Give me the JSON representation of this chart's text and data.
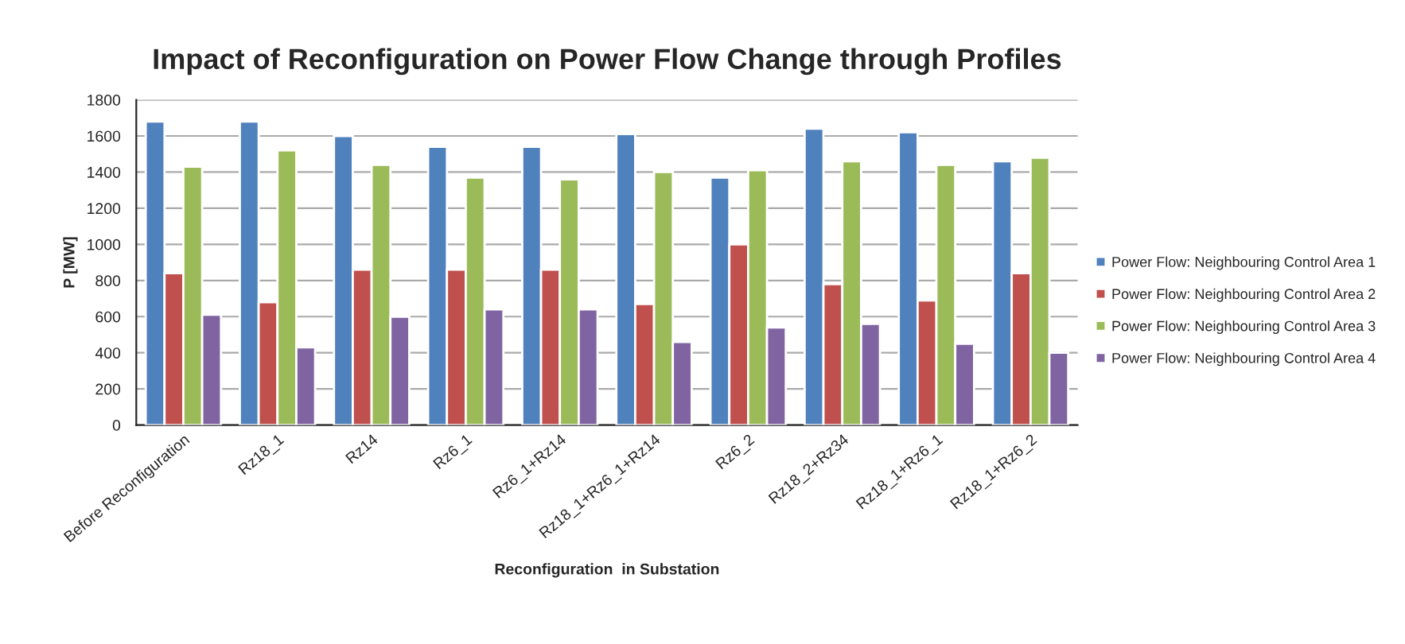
{
  "chart_data": {
    "type": "bar",
    "title": "Impact of Reconfiguration on Power Flow Change through Profiles",
    "xlabel": "Reconfiguration  in Substation",
    "ylabel": "P [MW]",
    "categories": [
      "Before Reconfiguration",
      "Rz18_1",
      "Rz14",
      "Rz6_1",
      "Rz6_1+Rz14",
      "Rz18_1+Rz6_1+Rz14",
      "Rz6_2",
      "Rz18_2+Rz34",
      "Rz18_1+Rz6_1",
      "Rz18_1+Rz6_2"
    ],
    "series": [
      {
        "name": "Power Flow: Neighbouring Control Area 1",
        "color": "#4f81bd",
        "values": [
          1680,
          1680,
          1600,
          1540,
          1540,
          1610,
          1370,
          1640,
          1620,
          1460
        ]
      },
      {
        "name": "Power Flow: Neighbouring Control Area 2",
        "color": "#c0504d",
        "values": [
          840,
          680,
          860,
          860,
          860,
          670,
          1000,
          780,
          690,
          840
        ]
      },
      {
        "name": "Power Flow: Neighbouring Control Area 3",
        "color": "#9bbb59",
        "values": [
          1430,
          1520,
          1440,
          1370,
          1360,
          1400,
          1410,
          1460,
          1440,
          1480
        ]
      },
      {
        "name": "Power Flow: Neighbouring Control Area 4",
        "color": "#8064a2",
        "values": [
          610,
          430,
          600,
          640,
          640,
          460,
          540,
          560,
          450,
          400
        ]
      }
    ],
    "ylim": [
      0,
      1800
    ],
    "yticks": [
      0,
      200,
      400,
      600,
      800,
      1000,
      1200,
      1400,
      1600,
      1800
    ],
    "grid": "y",
    "legend": "right"
  }
}
